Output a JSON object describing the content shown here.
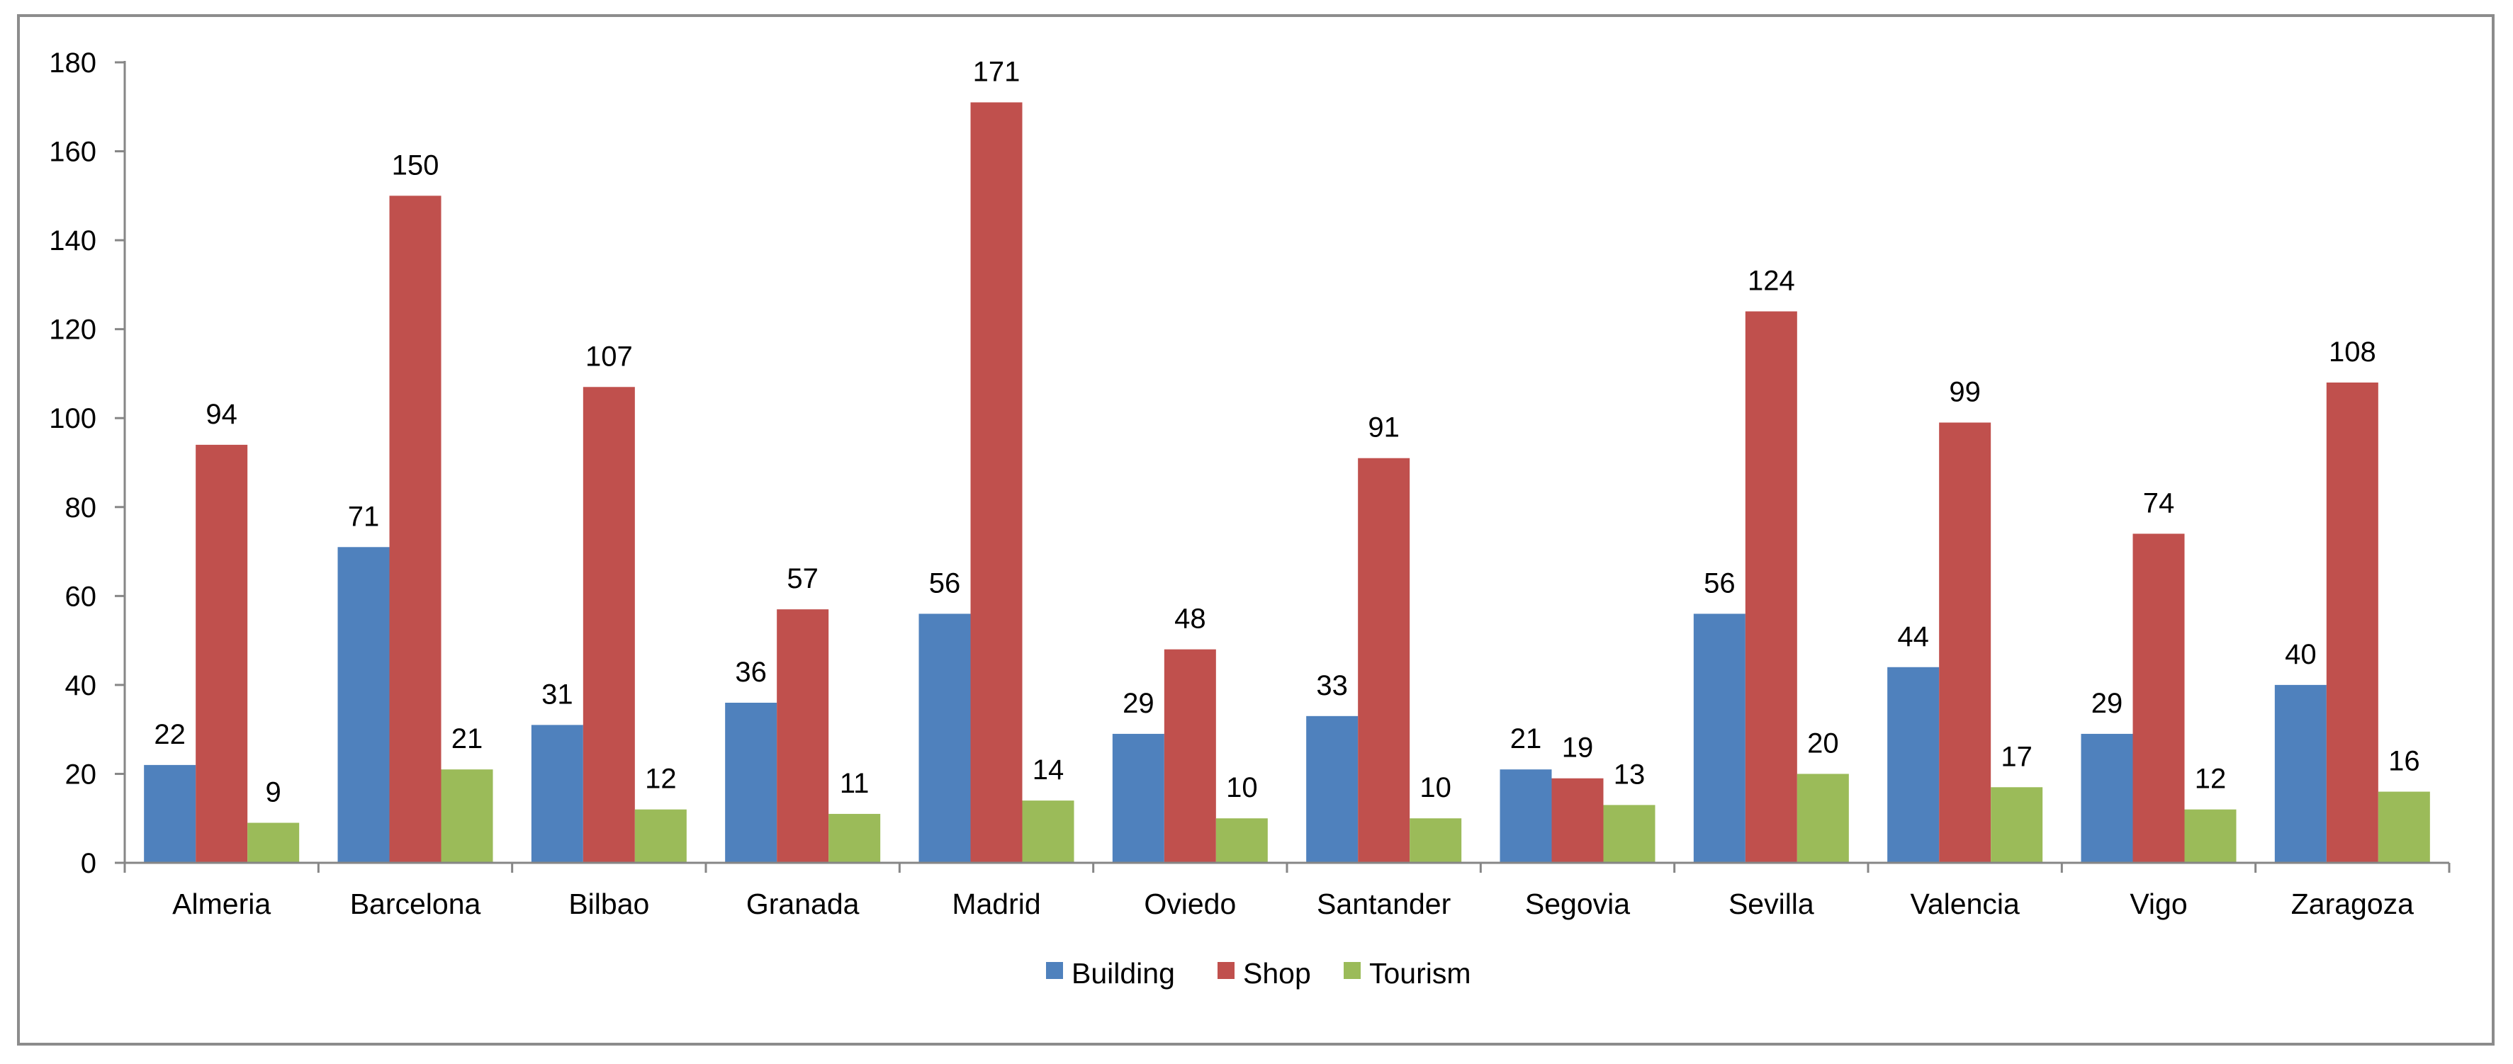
{
  "chart_data": {
    "type": "bar",
    "title": "",
    "xlabel": "",
    "ylabel": "",
    "ylim": [
      0,
      180
    ],
    "yticks": [
      0,
      20,
      40,
      60,
      80,
      100,
      120,
      140,
      160,
      180
    ],
    "categories": [
      "Almeria",
      "Barcelona",
      "Bilbao",
      "Granada",
      "Madrid",
      "Oviedo",
      "Santander",
      "Segovia",
      "Sevilla",
      "Valencia",
      "Vigo",
      "Zaragoza"
    ],
    "series": [
      {
        "name": "Building",
        "color": "#4f81bd",
        "values": [
          22,
          71,
          31,
          36,
          56,
          29,
          33,
          21,
          56,
          44,
          29,
          40
        ]
      },
      {
        "name": "Shop",
        "color": "#c0504d",
        "values": [
          94,
          150,
          107,
          57,
          171,
          48,
          91,
          19,
          124,
          99,
          74,
          108
        ]
      },
      {
        "name": "Tourism",
        "color": "#9bbb59",
        "values": [
          9,
          21,
          12,
          11,
          14,
          10,
          10,
          13,
          20,
          17,
          12,
          16
        ]
      }
    ],
    "grid": false,
    "data_labels": true,
    "legend_position": "bottom"
  }
}
